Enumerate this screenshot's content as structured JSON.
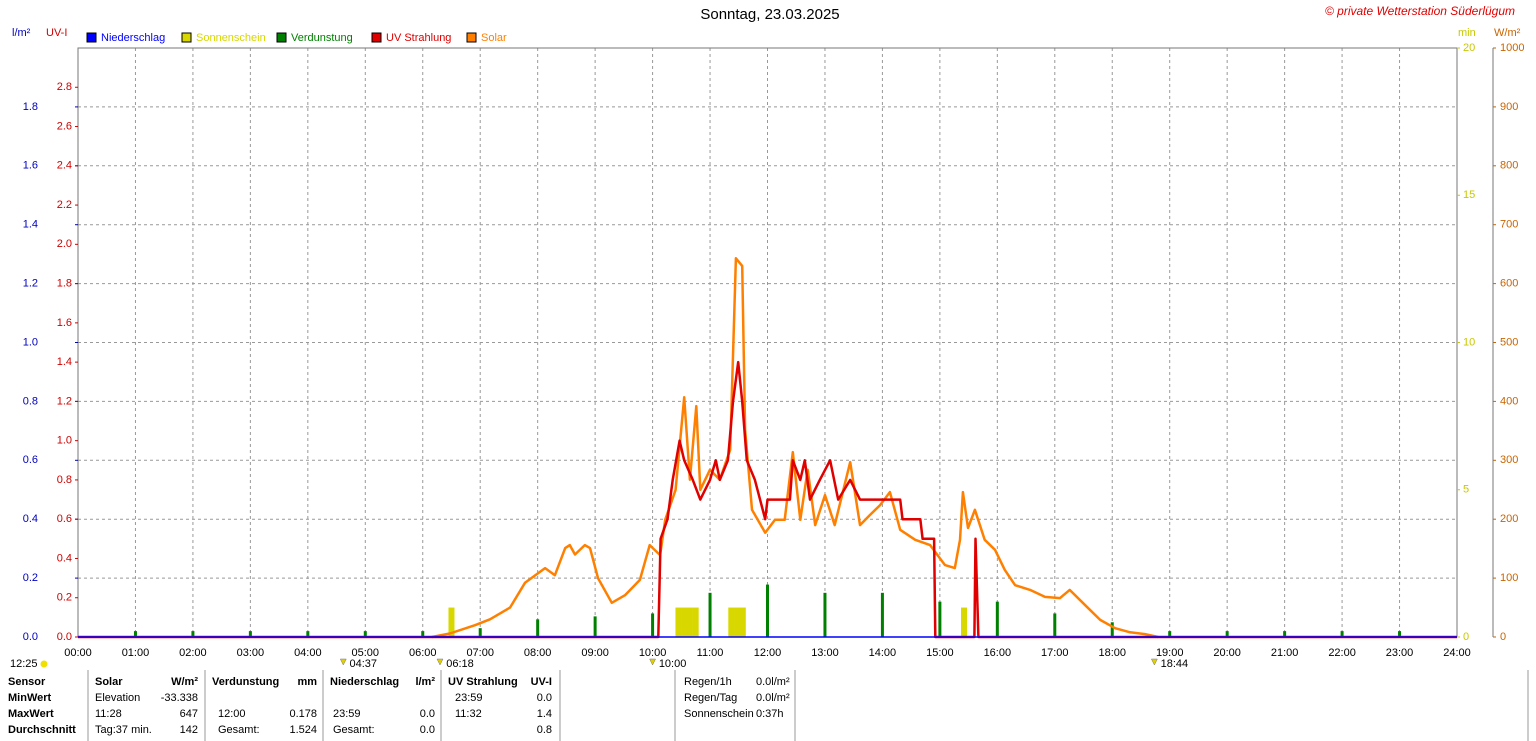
{
  "chart_data": {
    "type": "line",
    "title": "Sonntag, 23.03.2025",
    "credit": "© private Wetterstation Süderlügum",
    "xlim": [
      0,
      24
    ],
    "xticks": [
      {
        "value": 0,
        "label": "00:00"
      },
      {
        "value": 1,
        "label": "01:00"
      },
      {
        "value": 2,
        "label": "02:00"
      },
      {
        "value": 3,
        "label": "03:00"
      },
      {
        "value": 4,
        "label": "04:00"
      },
      {
        "value": 5,
        "label": "05:00"
      },
      {
        "value": 6,
        "label": "06:00"
      },
      {
        "value": 7,
        "label": "07:00"
      },
      {
        "value": 8,
        "label": "08:00"
      },
      {
        "value": 9,
        "label": "09:00"
      },
      {
        "value": 10,
        "label": "10:00"
      },
      {
        "value": 11,
        "label": "11:00"
      },
      {
        "value": 12,
        "label": "12:00"
      },
      {
        "value": 13,
        "label": "13:00"
      },
      {
        "value": 14,
        "label": "14:00"
      },
      {
        "value": 15,
        "label": "15:00"
      },
      {
        "value": 16,
        "label": "16:00"
      },
      {
        "value": 17,
        "label": "17:00"
      },
      {
        "value": 18,
        "label": "18:00"
      },
      {
        "value": 19,
        "label": "19:00"
      },
      {
        "value": 20,
        "label": "20:00"
      },
      {
        "value": 21,
        "label": "21:00"
      },
      {
        "value": 22,
        "label": "22:00"
      },
      {
        "value": 23,
        "label": "23:00"
      },
      {
        "value": 24,
        "label": "24:00"
      }
    ],
    "grid": true,
    "axes": {
      "y": {
        "label": "l/m²",
        "color": "#0000c0",
        "lim": [
          0,
          2.0
        ],
        "ticks": [
          {
            "value": 0,
            "label": "0.0"
          },
          {
            "value": 0.2,
            "label": "0.2"
          },
          {
            "value": 0.4,
            "label": "0.4"
          },
          {
            "value": 0.6,
            "label": "0.6"
          },
          {
            "value": 0.8,
            "label": "0.8"
          },
          {
            "value": 1.0,
            "label": "1.0"
          },
          {
            "value": 1.2,
            "label": "1.2"
          },
          {
            "value": 1.4,
            "label": "1.4"
          },
          {
            "value": 1.6,
            "label": "1.6"
          },
          {
            "value": 1.8,
            "label": "1.8"
          }
        ]
      },
      "uv": {
        "label": "UV-I",
        "color": "#d00000",
        "lim": [
          0,
          3.0
        ],
        "ticks": [
          {
            "value": 0,
            "label": "0.0"
          },
          {
            "value": 0.2,
            "label": "0.2"
          },
          {
            "value": 0.4,
            "label": "0.4"
          },
          {
            "value": 0.6,
            "label": "0.6"
          },
          {
            "value": 0.8,
            "label": "0.8"
          },
          {
            "value": 1.0,
            "label": "1.0"
          },
          {
            "value": 1.2,
            "label": "1.2"
          },
          {
            "value": 1.4,
            "label": "1.4"
          },
          {
            "value": 1.6,
            "label": "1.6"
          },
          {
            "value": 1.8,
            "label": "1.8"
          },
          {
            "value": 2.0,
            "label": "2.0"
          },
          {
            "value": 2.2,
            "label": "2.2"
          },
          {
            "value": 2.4,
            "label": "2.4"
          },
          {
            "value": 2.6,
            "label": "2.6"
          },
          {
            "value": 2.8,
            "label": "2.8"
          }
        ]
      },
      "min": {
        "label": "min",
        "color": "#c8c800",
        "lim": [
          0,
          20
        ],
        "ticks": [
          0,
          5,
          10,
          15,
          20
        ]
      },
      "solar": {
        "label": "W/m²",
        "color": "#c86400",
        "lim": [
          0,
          1000
        ],
        "ticks": [
          0,
          100,
          200,
          300,
          400,
          500,
          600,
          700,
          800,
          900,
          1000
        ]
      }
    },
    "series": [
      {
        "name": "Niederschlag",
        "color": "#0000ff",
        "kind": "line",
        "axis": "y",
        "x": [
          0,
          24
        ],
        "values": [
          0,
          0
        ]
      },
      {
        "name": "Sonnenschein",
        "color": "#d8d800",
        "kind": "bar",
        "axis": "min",
        "x": [
          6.5,
          10.45,
          10.55,
          10.65,
          10.75,
          11.37,
          11.47,
          11.57,
          15.42
        ],
        "values": [
          1,
          1,
          1,
          1,
          1,
          1,
          1,
          1,
          1
        ]
      },
      {
        "name": "Verdunstung",
        "color": "#008000",
        "kind": "bar",
        "axis": "y",
        "x": [
          1,
          2,
          3,
          4,
          5,
          6,
          7,
          8,
          9,
          10,
          11,
          12,
          13,
          14,
          15,
          16,
          17,
          18,
          19,
          20,
          21,
          22,
          23
        ],
        "values": [
          0.02,
          0.02,
          0.02,
          0.02,
          0.02,
          0.02,
          0.03,
          0.06,
          0.07,
          0.08,
          0.15,
          0.178,
          0.15,
          0.15,
          0.12,
          0.12,
          0.08,
          0.05,
          0.02,
          0.02,
          0.02,
          0.02,
          0.02
        ]
      },
      {
        "name": "UV Strahlung",
        "color": "#e00000",
        "kind": "line",
        "axis": "uv",
        "x": [
          0,
          10.1,
          10.14,
          10.26,
          10.35,
          10.47,
          10.55,
          10.7,
          10.83,
          11.0,
          11.1,
          11.17,
          11.31,
          11.4,
          11.49,
          11.56,
          11.64,
          11.78,
          11.96,
          12.0,
          12.39,
          12.44,
          12.57,
          12.65,
          12.74,
          12.91,
          13.09,
          13.23,
          13.44,
          13.61,
          14.31,
          14.35,
          14.66,
          14.7,
          14.9,
          14.92,
          15.6,
          15.62,
          15.67,
          24
        ],
        "values": [
          0,
          0,
          0.5,
          0.6,
          0.8,
          1.0,
          0.9,
          0.8,
          0.7,
          0.8,
          0.9,
          0.8,
          0.9,
          1.2,
          1.4,
          1.2,
          0.9,
          0.8,
          0.6,
          0.7,
          0.7,
          0.9,
          0.8,
          0.9,
          0.7,
          0.8,
          0.9,
          0.7,
          0.8,
          0.7,
          0.7,
          0.6,
          0.6,
          0.5,
          0.5,
          0,
          0,
          0.5,
          0,
          0
        ]
      },
      {
        "name": "Solar",
        "color": "#ff8000",
        "kind": "line",
        "axis": "solar",
        "x": [
          6.16,
          6.47,
          6.91,
          7.17,
          7.52,
          7.78,
          8.13,
          8.3,
          8.48,
          8.56,
          8.65,
          8.82,
          8.91,
          9.05,
          9.29,
          9.52,
          9.78,
          9.95,
          10.13,
          10.22,
          10.4,
          10.55,
          10.65,
          10.76,
          10.83,
          11.0,
          11.17,
          11.35,
          11.45,
          11.56,
          11.61,
          11.73,
          11.96,
          12.13,
          12.3,
          12.44,
          12.57,
          12.7,
          12.83,
          13.0,
          13.17,
          13.44,
          13.61,
          13.78,
          13.96,
          14.13,
          14.31,
          14.57,
          14.83,
          15.09,
          15.26,
          15.35,
          15.4,
          15.49,
          15.61,
          15.78,
          15.96,
          16.13,
          16.31,
          16.57,
          16.83,
          17.09,
          17.26,
          17.53,
          17.79,
          18.05,
          18.31,
          18.57,
          18.8
        ],
        "values": [
          0,
          6,
          20,
          30,
          50,
          92,
          117,
          105,
          151,
          156,
          140,
          156,
          151,
          100,
          58,
          71,
          97,
          156,
          139,
          199,
          250,
          407,
          267,
          392,
          250,
          284,
          267,
          318,
          643,
          630,
          352,
          216,
          177,
          199,
          199,
          314,
          199,
          284,
          190,
          241,
          190,
          297,
          190,
          207,
          224,
          246,
          182,
          165,
          156,
          122,
          117,
          165,
          246,
          185,
          216,
          165,
          148,
          114,
          88,
          80,
          68,
          66,
          80,
          54,
          29,
          15,
          8,
          5,
          0
        ]
      }
    ],
    "day_length": "12:25",
    "sun_markers": [
      {
        "label": "04:37",
        "x": 4.617
      },
      {
        "label": "06:18",
        "x": 6.3
      },
      {
        "label": "10:00",
        "x": 10.0
      },
      {
        "label": "18:44",
        "x": 18.733
      }
    ],
    "stats": {
      "headers": [
        "Sensor",
        "Solar",
        "W/m²",
        "Verdunstung",
        "mm",
        "Niederschlag",
        "l/m²",
        "UV Strahlung",
        "UV-I"
      ],
      "rows": [
        [
          "MinWert",
          "Elevation",
          "-33.338",
          null,
          null,
          null,
          null,
          "23:59",
          "0.0"
        ],
        [
          "MaxWert",
          "11:28",
          "647",
          "12:00",
          "0.178",
          "23:59",
          "0.0",
          "11:32",
          "1.4"
        ],
        [
          "Durchschnitt",
          "Tag:37 min.",
          "142",
          "Gesamt:",
          "1.524",
          "Gesamt:",
          "0.0",
          null,
          "0.8"
        ]
      ],
      "summary": [
        [
          "Regen/1h",
          "0.0l/m²"
        ],
        [
          "Regen/Tag",
          "0.0l/m²"
        ],
        [
          "Sonnenschein",
          "0:37h"
        ]
      ]
    }
  }
}
